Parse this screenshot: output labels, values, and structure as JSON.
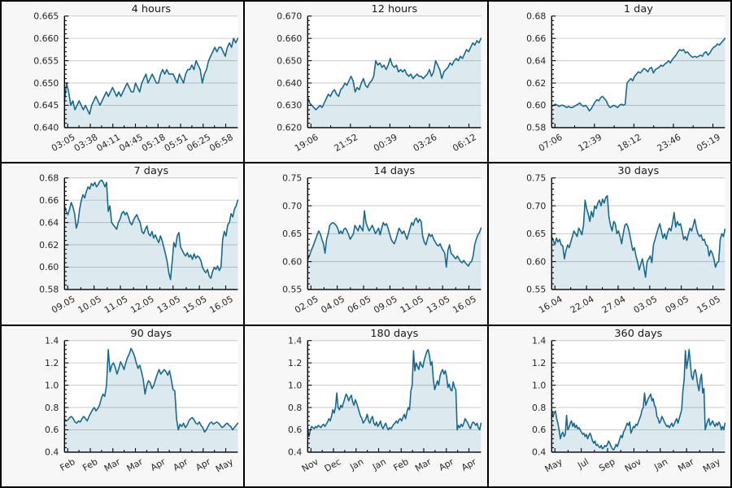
{
  "palette": {
    "line": "#17698f",
    "fill": "rgba(23,105,143,0.15)",
    "grid": "#cacaca",
    "plot_bg": "#ffffff",
    "panel_bg": "#f7f7f7",
    "axis": "#000000",
    "text": "#262626",
    "divider": "#000000"
  },
  "chart_data": [
    {
      "type": "area",
      "title": "4 hours",
      "slug": "4-hours",
      "ylim": [
        0.64,
        0.665
      ],
      "yticks": [
        0.64,
        0.645,
        0.65,
        0.655,
        0.66,
        0.665
      ],
      "ytick_labels": [
        "0.640",
        "0.645",
        "0.650",
        "0.655",
        "0.660",
        "0.665"
      ],
      "xtick_labels": [
        "03:05",
        "03:38",
        "04:11",
        "04:45",
        "05:18",
        "05:51",
        "06:25",
        "06:58"
      ],
      "values": [
        0.646,
        0.65,
        0.648,
        0.645,
        0.646,
        0.644,
        0.645,
        0.646,
        0.645,
        0.644,
        0.645,
        0.644,
        0.643,
        0.645,
        0.646,
        0.647,
        0.646,
        0.645,
        0.646,
        0.647,
        0.648,
        0.647,
        0.648,
        0.649,
        0.648,
        0.647,
        0.648,
        0.647,
        0.648,
        0.649,
        0.65,
        0.649,
        0.648,
        0.648,
        0.65,
        0.649,
        0.648,
        0.65,
        0.651,
        0.652,
        0.65,
        0.651,
        0.652,
        0.651,
        0.65,
        0.65,
        0.652,
        0.653,
        0.652,
        0.653,
        0.652,
        0.652,
        0.652,
        0.651,
        0.65,
        0.652,
        0.651,
        0.65,
        0.652,
        0.653,
        0.653,
        0.654,
        0.653,
        0.655,
        0.654,
        0.653,
        0.65,
        0.652,
        0.653,
        0.655,
        0.656,
        0.657,
        0.658,
        0.657,
        0.658,
        0.658,
        0.657,
        0.656,
        0.658,
        0.659,
        0.658,
        0.66,
        0.659,
        0.66
      ]
    },
    {
      "type": "area",
      "title": "12 hours",
      "slug": "12-hours",
      "ylim": [
        0.62,
        0.67
      ],
      "yticks": [
        0.62,
        0.63,
        0.64,
        0.65,
        0.66,
        0.67
      ],
      "ytick_labels": [
        "0.620",
        "0.630",
        "0.640",
        "0.650",
        "0.660",
        "0.670"
      ],
      "xtick_labels": [
        "19:06",
        "21:52",
        "00:39",
        "03:26",
        "06:12"
      ],
      "values": [
        0.634,
        0.631,
        0.63,
        0.629,
        0.628,
        0.629,
        0.63,
        0.629,
        0.631,
        0.633,
        0.635,
        0.634,
        0.636,
        0.637,
        0.635,
        0.634,
        0.637,
        0.638,
        0.64,
        0.639,
        0.641,
        0.643,
        0.641,
        0.636,
        0.638,
        0.637,
        0.64,
        0.642,
        0.639,
        0.638,
        0.64,
        0.641,
        0.643,
        0.65,
        0.648,
        0.649,
        0.647,
        0.648,
        0.646,
        0.648,
        0.651,
        0.648,
        0.647,
        0.648,
        0.645,
        0.646,
        0.645,
        0.646,
        0.644,
        0.643,
        0.644,
        0.642,
        0.643,
        0.644,
        0.643,
        0.643,
        0.642,
        0.643,
        0.644,
        0.646,
        0.643,
        0.645,
        0.65,
        0.648,
        0.646,
        0.642,
        0.645,
        0.646,
        0.647,
        0.649,
        0.648,
        0.65,
        0.651,
        0.65,
        0.652,
        0.651,
        0.653,
        0.655,
        0.654,
        0.656,
        0.658,
        0.657,
        0.659,
        0.658,
        0.66
      ]
    },
    {
      "type": "area",
      "title": "1 day",
      "slug": "1-day",
      "ylim": [
        0.58,
        0.68
      ],
      "yticks": [
        0.58,
        0.6,
        0.62,
        0.64,
        0.66,
        0.68
      ],
      "ytick_labels": [
        "0.58",
        "0.60",
        "0.62",
        "0.64",
        "0.66",
        "0.68"
      ],
      "xtick_labels": [
        "07:06",
        "12:39",
        "18:12",
        "23:46",
        "05:19"
      ],
      "values": [
        0.599,
        0.6,
        0.601,
        0.6,
        0.599,
        0.6,
        0.6,
        0.599,
        0.598,
        0.599,
        0.598,
        0.598,
        0.599,
        0.6,
        0.601,
        0.602,
        0.6,
        0.599,
        0.6,
        0.598,
        0.595,
        0.597,
        0.6,
        0.603,
        0.605,
        0.604,
        0.607,
        0.608,
        0.606,
        0.604,
        0.6,
        0.598,
        0.599,
        0.6,
        0.599,
        0.598,
        0.6,
        0.601,
        0.6,
        0.601,
        0.62,
        0.622,
        0.624,
        0.622,
        0.626,
        0.628,
        0.63,
        0.629,
        0.631,
        0.633,
        0.632,
        0.63,
        0.633,
        0.634,
        0.629,
        0.632,
        0.633,
        0.634,
        0.636,
        0.635,
        0.637,
        0.638,
        0.64,
        0.638,
        0.641,
        0.643,
        0.645,
        0.648,
        0.65,
        0.649,
        0.65,
        0.647,
        0.648,
        0.646,
        0.644,
        0.643,
        0.644,
        0.643,
        0.644,
        0.645,
        0.644,
        0.647,
        0.648,
        0.645,
        0.647,
        0.65,
        0.652,
        0.653,
        0.655,
        0.654,
        0.656,
        0.658,
        0.66
      ]
    },
    {
      "type": "area",
      "title": "7 days",
      "slug": "7-days",
      "ylim": [
        0.58,
        0.68
      ],
      "yticks": [
        0.58,
        0.6,
        0.62,
        0.64,
        0.66,
        0.68
      ],
      "ytick_labels": [
        "0.58",
        "0.60",
        "0.62",
        "0.64",
        "0.66",
        "0.68"
      ],
      "xtick_labels": [
        "09.05",
        "10.05",
        "11.05",
        "12.05",
        "13.05",
        "15.05",
        "16.05"
      ],
      "values": [
        0.655,
        0.65,
        0.647,
        0.652,
        0.658,
        0.654,
        0.648,
        0.635,
        0.64,
        0.652,
        0.66,
        0.665,
        0.662,
        0.668,
        0.672,
        0.67,
        0.675,
        0.673,
        0.676,
        0.672,
        0.674,
        0.677,
        0.678,
        0.676,
        0.672,
        0.676,
        0.65,
        0.655,
        0.64,
        0.638,
        0.636,
        0.634,
        0.64,
        0.643,
        0.648,
        0.65,
        0.647,
        0.649,
        0.645,
        0.64,
        0.638,
        0.642,
        0.645,
        0.647,
        0.643,
        0.64,
        0.632,
        0.63,
        0.634,
        0.637,
        0.63,
        0.628,
        0.632,
        0.626,
        0.629,
        0.625,
        0.622,
        0.628,
        0.624,
        0.618,
        0.612,
        0.605,
        0.595,
        0.589,
        0.605,
        0.622,
        0.618,
        0.628,
        0.631,
        0.618,
        0.615,
        0.612,
        0.61,
        0.613,
        0.609,
        0.611,
        0.607,
        0.612,
        0.608,
        0.61,
        0.609,
        0.606,
        0.6,
        0.597,
        0.595,
        0.598,
        0.592,
        0.59,
        0.596,
        0.6,
        0.598,
        0.601,
        0.597,
        0.6,
        0.625,
        0.632,
        0.628,
        0.638,
        0.64,
        0.648,
        0.645,
        0.652,
        0.655,
        0.66
      ]
    },
    {
      "type": "area",
      "title": "14 days",
      "slug": "14-days",
      "ylim": [
        0.55,
        0.75
      ],
      "yticks": [
        0.55,
        0.6,
        0.65,
        0.7,
        0.75
      ],
      "ytick_labels": [
        "0.55",
        "0.60",
        "0.65",
        "0.70",
        "0.75"
      ],
      "xtick_labels": [
        "02.05",
        "04.05",
        "06.05",
        "09.05",
        "11.05",
        "13.05",
        "16.05"
      ],
      "values": [
        0.603,
        0.61,
        0.618,
        0.625,
        0.632,
        0.64,
        0.648,
        0.655,
        0.65,
        0.64,
        0.632,
        0.615,
        0.64,
        0.65,
        0.665,
        0.668,
        0.67,
        0.668,
        0.665,
        0.66,
        0.65,
        0.655,
        0.65,
        0.658,
        0.66,
        0.655,
        0.648,
        0.64,
        0.645,
        0.65,
        0.665,
        0.66,
        0.655,
        0.665,
        0.66,
        0.655,
        0.691,
        0.67,
        0.662,
        0.655,
        0.66,
        0.665,
        0.658,
        0.65,
        0.655,
        0.66,
        0.648,
        0.66,
        0.67,
        0.665,
        0.668,
        0.66,
        0.65,
        0.64,
        0.635,
        0.632,
        0.64,
        0.65,
        0.66,
        0.655,
        0.65,
        0.655,
        0.648,
        0.64,
        0.65,
        0.66,
        0.67,
        0.665,
        0.675,
        0.678,
        0.67,
        0.676,
        0.672,
        0.645,
        0.635,
        0.63,
        0.64,
        0.65,
        0.645,
        0.648,
        0.64,
        0.635,
        0.63,
        0.628,
        0.632,
        0.625,
        0.62,
        0.615,
        0.59,
        0.62,
        0.63,
        0.615,
        0.612,
        0.608,
        0.605,
        0.61,
        0.605,
        0.6,
        0.598,
        0.602,
        0.598,
        0.595,
        0.592,
        0.598,
        0.6,
        0.61,
        0.63,
        0.64,
        0.648,
        0.652,
        0.66
      ]
    },
    {
      "type": "area",
      "title": "30 days",
      "slug": "30-days",
      "ylim": [
        0.55,
        0.75
      ],
      "yticks": [
        0.55,
        0.6,
        0.65,
        0.7,
        0.75
      ],
      "ytick_labels": [
        "0.55",
        "0.60",
        "0.65",
        "0.70",
        "0.75"
      ],
      "xtick_labels": [
        "16.04",
        "22.04",
        "27.04",
        "03.05",
        "09.05",
        "15.05"
      ],
      "values": [
        0.645,
        0.638,
        0.63,
        0.642,
        0.635,
        0.64,
        0.63,
        0.628,
        0.605,
        0.62,
        0.63,
        0.625,
        0.635,
        0.645,
        0.655,
        0.65,
        0.645,
        0.66,
        0.655,
        0.648,
        0.665,
        0.71,
        0.695,
        0.685,
        0.672,
        0.69,
        0.68,
        0.7,
        0.695,
        0.705,
        0.71,
        0.7,
        0.712,
        0.705,
        0.715,
        0.718,
        0.68,
        0.665,
        0.655,
        0.672,
        0.668,
        0.65,
        0.655,
        0.645,
        0.632,
        0.65,
        0.665,
        0.668,
        0.662,
        0.65,
        0.635,
        0.62,
        0.625,
        0.61,
        0.6,
        0.585,
        0.595,
        0.605,
        0.59,
        0.572,
        0.6,
        0.605,
        0.61,
        0.598,
        0.63,
        0.64,
        0.65,
        0.66,
        0.668,
        0.655,
        0.642,
        0.65,
        0.64,
        0.653,
        0.66,
        0.655,
        0.67,
        0.688,
        0.662,
        0.672,
        0.665,
        0.668,
        0.655,
        0.64,
        0.645,
        0.638,
        0.65,
        0.66,
        0.655,
        0.665,
        0.676,
        0.66,
        0.65,
        0.645,
        0.648,
        0.638,
        0.64,
        0.63,
        0.628,
        0.61,
        0.62,
        0.615,
        0.605,
        0.59,
        0.598,
        0.6,
        0.64,
        0.65,
        0.645,
        0.658
      ]
    },
    {
      "type": "area",
      "title": "90 days",
      "slug": "90-days",
      "ylim": [
        0.4,
        1.4
      ],
      "yticks": [
        0.4,
        0.6,
        0.8,
        1.0,
        1.2,
        1.4
      ],
      "ytick_labels": [
        "0.4",
        "0.6",
        "0.8",
        "1.0",
        "1.2",
        "1.4"
      ],
      "xtick_labels": [
        "Feb",
        "Feb",
        "Mar",
        "Mar",
        "Apr",
        "Apr",
        "Apr",
        "May"
      ],
      "values": [
        0.7,
        0.68,
        0.69,
        0.71,
        0.72,
        0.7,
        0.67,
        0.66,
        0.68,
        0.67,
        0.7,
        0.72,
        0.7,
        0.68,
        0.72,
        0.75,
        0.78,
        0.8,
        0.77,
        0.79,
        0.82,
        0.88,
        0.92,
        0.9,
        1.0,
        1.32,
        1.12,
        1.18,
        1.2,
        1.16,
        1.1,
        1.15,
        1.21,
        1.18,
        1.14,
        1.2,
        1.25,
        1.28,
        1.33,
        1.3,
        1.26,
        1.2,
        1.15,
        1.18,
        1.12,
        1.05,
        0.92,
        1.0,
        1.04,
        1.02,
        0.97,
        1.0,
        1.05,
        1.1,
        1.14,
        1.1,
        1.12,
        1.14,
        1.12,
        1.09,
        1.13,
        1.05,
        0.96,
        0.95,
        0.7,
        0.6,
        0.65,
        0.63,
        0.66,
        0.62,
        0.64,
        0.68,
        0.7,
        0.71,
        0.69,
        0.66,
        0.65,
        0.67,
        0.64,
        0.62,
        0.58,
        0.6,
        0.63,
        0.66,
        0.67,
        0.65,
        0.66,
        0.67,
        0.66,
        0.64,
        0.62,
        0.63,
        0.65,
        0.66,
        0.64,
        0.63,
        0.6,
        0.62,
        0.64,
        0.66
      ]
    },
    {
      "type": "area",
      "title": "180 days",
      "slug": "180-days",
      "ylim": [
        0.4,
        1.4
      ],
      "yticks": [
        0.4,
        0.6,
        0.8,
        1.0,
        1.2,
        1.4
      ],
      "ytick_labels": [
        "0.4",
        "0.6",
        "0.8",
        "1.0",
        "1.2",
        "1.4"
      ],
      "xtick_labels": [
        "Nov",
        "Dec",
        "Jan",
        "Jan",
        "Feb",
        "Mar",
        "Apr",
        "Apr"
      ],
      "values": [
        0.62,
        0.54,
        0.6,
        0.63,
        0.62,
        0.61,
        0.63,
        0.62,
        0.64,
        0.63,
        0.62,
        0.64,
        0.65,
        0.63,
        0.65,
        0.67,
        0.7,
        0.68,
        0.72,
        0.78,
        0.75,
        0.8,
        0.93,
        0.8,
        0.78,
        0.82,
        0.8,
        0.84,
        0.88,
        0.92,
        0.9,
        0.86,
        0.89,
        0.91,
        0.85,
        0.82,
        0.87,
        0.84,
        0.8,
        0.76,
        0.72,
        0.7,
        0.66,
        0.68,
        0.7,
        0.74,
        0.68,
        0.66,
        0.7,
        0.72,
        0.66,
        0.64,
        0.67,
        0.63,
        0.65,
        0.68,
        0.63,
        0.61,
        0.64,
        0.66,
        0.62,
        0.6,
        0.62,
        0.61,
        0.63,
        0.65,
        0.66,
        0.68,
        0.66,
        0.69,
        0.7,
        0.68,
        0.71,
        0.74,
        0.7,
        0.76,
        0.8,
        0.78,
        0.95,
        1.0,
        1.31,
        1.13,
        1.2,
        1.17,
        1.14,
        1.21,
        1.18,
        1.16,
        1.22,
        1.26,
        1.3,
        1.32,
        1.27,
        1.18,
        1.21,
        1.05,
        0.96,
        1.0,
        1.04,
        1.0,
        1.08,
        1.12,
        1.14,
        1.1,
        1.13,
        1.08,
        0.98,
        1.01,
        0.96,
        0.95,
        1.03,
        0.98,
        0.96,
        0.6,
        0.64,
        0.62,
        0.65,
        0.63,
        0.66,
        0.7,
        0.68,
        0.66,
        0.63,
        0.61,
        0.65,
        0.67,
        0.66,
        0.64,
        0.66,
        0.62,
        0.6,
        0.66
      ]
    },
    {
      "type": "area",
      "title": "360 days",
      "slug": "360-days",
      "ylim": [
        0.4,
        1.4
      ],
      "yticks": [
        0.4,
        0.6,
        0.8,
        1.0,
        1.2,
        1.4
      ],
      "ytick_labels": [
        "0.4",
        "0.6",
        "0.8",
        "1.0",
        "1.2",
        "1.4"
      ],
      "xtick_labels": [
        "May",
        "Jul",
        "Sep",
        "Nov",
        "Jan",
        "Mar",
        "May"
      ],
      "values": [
        0.78,
        0.72,
        0.75,
        0.77,
        0.7,
        0.66,
        0.6,
        0.52,
        0.56,
        0.58,
        0.54,
        0.56,
        0.73,
        0.6,
        0.62,
        0.66,
        0.68,
        0.63,
        0.66,
        0.62,
        0.64,
        0.61,
        0.62,
        0.6,
        0.58,
        0.56,
        0.57,
        0.54,
        0.56,
        0.52,
        0.55,
        0.57,
        0.54,
        0.5,
        0.48,
        0.5,
        0.46,
        0.47,
        0.45,
        0.44,
        0.46,
        0.43,
        0.44,
        0.46,
        0.45,
        0.47,
        0.5,
        0.48,
        0.45,
        0.43,
        0.42,
        0.44,
        0.47,
        0.45,
        0.48,
        0.52,
        0.55,
        0.53,
        0.58,
        0.6,
        0.63,
        0.66,
        0.64,
        0.67,
        0.57,
        0.6,
        0.63,
        0.62,
        0.65,
        0.64,
        0.67,
        0.7,
        0.73,
        0.78,
        0.8,
        0.93,
        0.82,
        0.85,
        0.88,
        0.9,
        0.92,
        0.86,
        0.88,
        0.82,
        0.8,
        0.72,
        0.7,
        0.66,
        0.68,
        0.72,
        0.7,
        0.67,
        0.65,
        0.63,
        0.64,
        0.62,
        0.64,
        0.66,
        0.63,
        0.65,
        0.68,
        0.7,
        0.66,
        0.7,
        0.74,
        0.78,
        0.95,
        1.05,
        1.31,
        1.15,
        1.22,
        1.32,
        1.2,
        1.08,
        1.05,
        1.12,
        1.14,
        1.08,
        1.0,
        0.95,
        1.05,
        1.1,
        0.93,
        0.97,
        0.6,
        0.64,
        0.68,
        0.7,
        0.64,
        0.66,
        0.68,
        0.65,
        0.63,
        0.66,
        0.64,
        0.67,
        0.65,
        0.6,
        0.63,
        0.6,
        0.66
      ]
    }
  ]
}
